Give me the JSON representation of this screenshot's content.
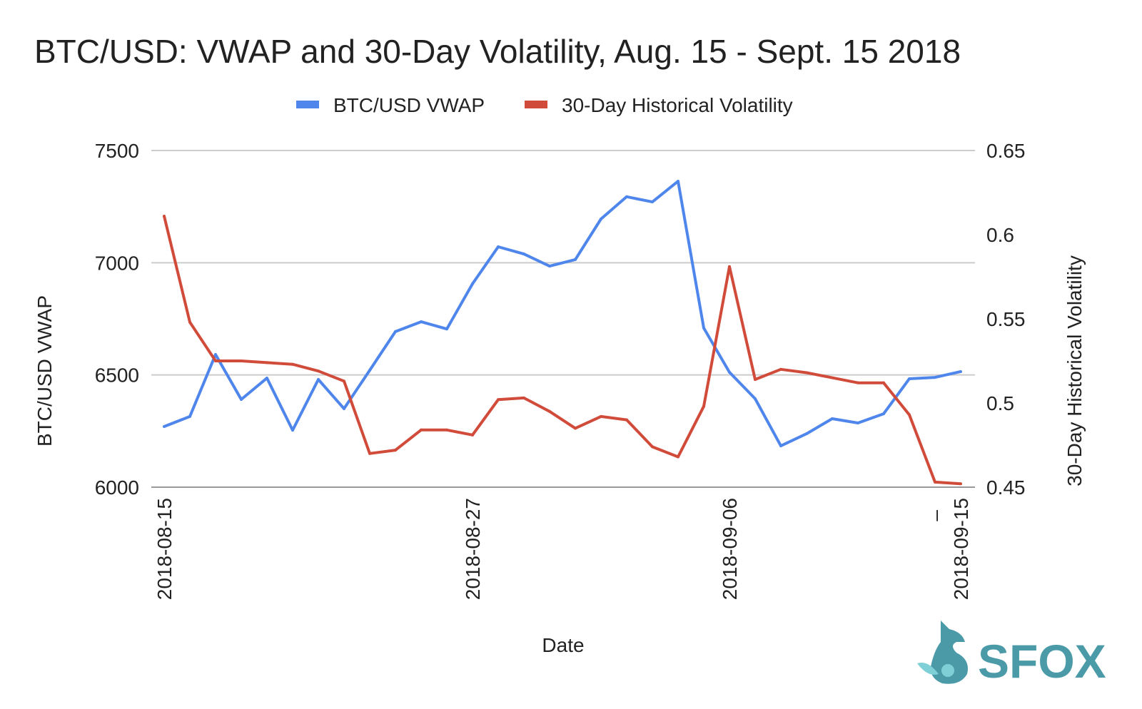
{
  "chart_data": {
    "type": "line",
    "title": "BTC/USD: VWAP and 30-Day Volatility, Aug. 15 - Sept. 15 2018",
    "xlabel": "Date",
    "ylabel": "BTC/USD VWAP",
    "y2label": "30-Day Historical Volatility",
    "legend_position": "top",
    "grid": true,
    "x_start": "2018-08-15",
    "x_end": "2018-09-15",
    "x_tick_labels": [
      {
        "date_index": 0,
        "label": "2018-08-15"
      },
      {
        "date_index": 12,
        "label": "2018-08-27"
      },
      {
        "date_index": 22,
        "label": "2018-09-06"
      },
      {
        "date_index": 30,
        "label": "–"
      },
      {
        "date_index": 31,
        "label": "2018-09-15"
      }
    ],
    "ylim": [
      6000,
      7500
    ],
    "y_ticks": [
      "6000",
      "6500",
      "7000",
      "7500"
    ],
    "y2lim": [
      0.45,
      0.65
    ],
    "y2_ticks": [
      "0.45",
      "0.5",
      "0.55",
      "0.6",
      "0.65"
    ],
    "series": [
      {
        "name": "BTC/USD VWAP",
        "axis": "left",
        "color": "#4f86ec",
        "values": [
          6270,
          6315,
          6591,
          6391,
          6486,
          6254,
          6480,
          6350,
          6521,
          6693,
          6737,
          6705,
          6906,
          7071,
          7039,
          6985,
          7014,
          7195,
          7294,
          7271,
          7363,
          6709,
          6512,
          6394,
          6184,
          6238,
          6305,
          6286,
          6327,
          6483,
          6489,
          6515
        ]
      },
      {
        "name": "30-Day Historical Volatility",
        "axis": "right",
        "color": "#d14b3a",
        "values": [
          0.611,
          0.548,
          0.525,
          0.525,
          0.524,
          0.523,
          0.519,
          0.513,
          0.47,
          0.472,
          0.484,
          0.484,
          0.481,
          0.502,
          0.503,
          0.495,
          0.485,
          0.492,
          0.49,
          0.474,
          0.468,
          0.498,
          0.581,
          0.514,
          0.52,
          0.518,
          0.515,
          0.512,
          0.512,
          0.493,
          0.453,
          0.452
        ]
      }
    ]
  },
  "logo": {
    "text": "SFOX",
    "color": "#4a9aa8"
  }
}
